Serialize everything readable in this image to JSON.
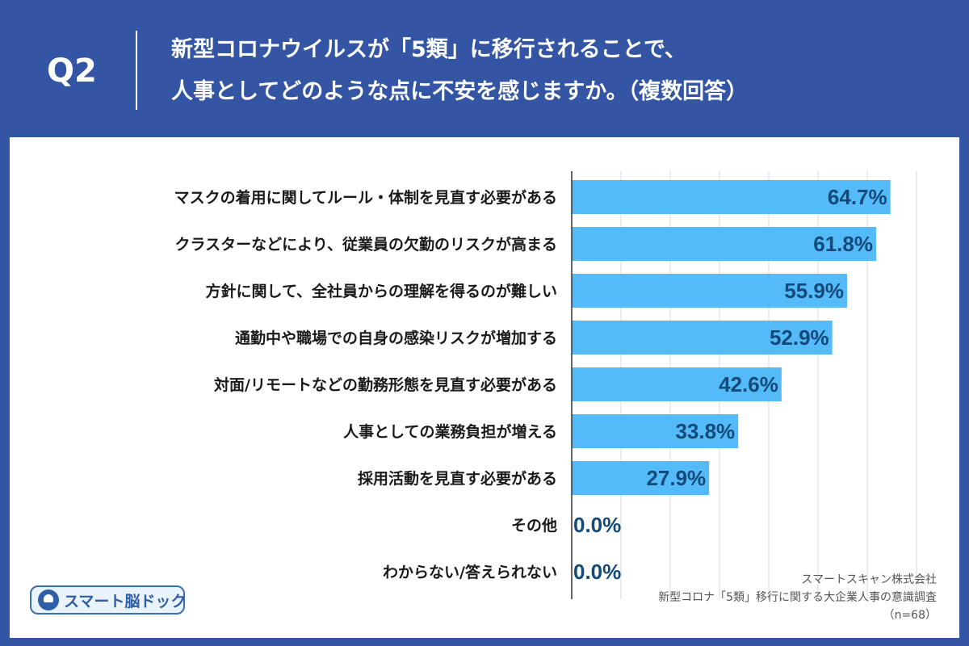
{
  "header": {
    "question_id": "Q2",
    "title_line1": "新型コロナウイルスが「5類」に移行されることで、",
    "title_line2": "人事としてどのような点に不安を感じますか。（複数回答）"
  },
  "chart_data": {
    "type": "bar",
    "orientation": "horizontal",
    "title": "新型コロナウイルスが「5類」に移行されることで、人事としてどのような点に不安を感じますか。（複数回答）",
    "categories": [
      "マスクの着用に関してルール・体制を見直す必要がある",
      "クラスターなどにより、従業員の欠勤のリスクが高まる",
      "方針に関して、全社員からの理解を得るのが難しい",
      "通勤中や職場での自身の感染リスクが増加する",
      "対面/リモートなどの勤務形態を見直す必要がある",
      "人事としての業務負担が増える",
      "採用活動を見直す必要がある",
      "その他",
      "わからない/答えられない"
    ],
    "values": [
      64.7,
      61.8,
      55.9,
      52.9,
      42.6,
      33.8,
      27.9,
      0.0,
      0.0
    ],
    "value_labels": [
      "64.7%",
      "61.8%",
      "55.9%",
      "52.9%",
      "42.6%",
      "33.8%",
      "27.9%",
      "0.0%",
      "0.0%"
    ],
    "unit": "%",
    "xlim": [
      0,
      70
    ],
    "grid_step": 10,
    "grid": true,
    "colors": {
      "bar": "#55bbf8",
      "value_text": "#134a7a",
      "grid": "#d9d9d9",
      "axis": "#333333"
    }
  },
  "footer": {
    "logo_text": "スマート脳ドック",
    "company": "スマートスキャン株式会社",
    "survey": "新型コロナ「5類」移行に関する大企業人事の意識調査",
    "sample": "（n=68）"
  }
}
